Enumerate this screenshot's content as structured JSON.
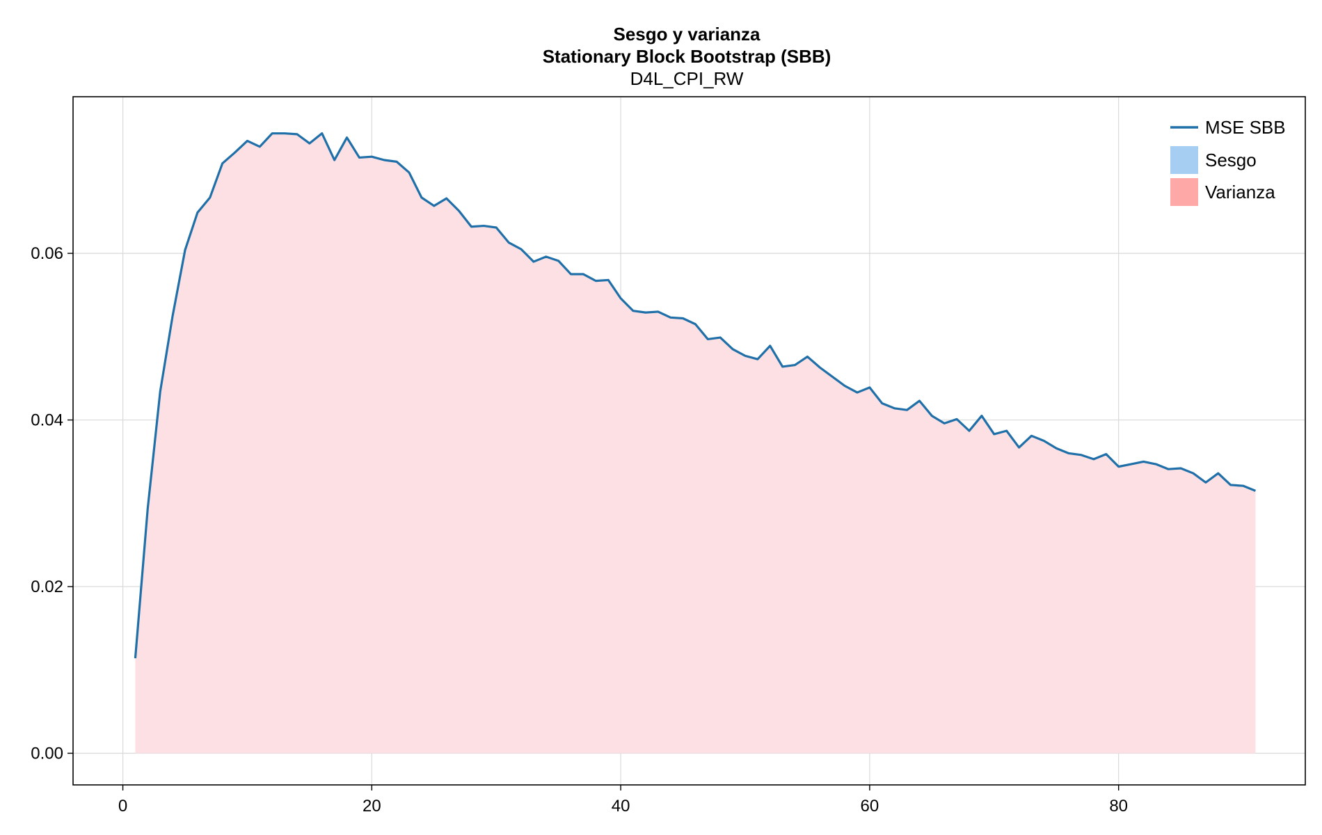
{
  "chart_data": {
    "type": "line",
    "title": "Sesgo y varianza",
    "subtitle": "Stationary Block Bootstrap (SBB)",
    "subtitle2": "D4L_CPI_RW",
    "xlabel": "",
    "ylabel": "",
    "xlim": [
      -4,
      95
    ],
    "ylim": [
      -0.0038,
      0.0788
    ],
    "xticks": [
      0,
      20,
      40,
      60,
      80
    ],
    "xtick_labels": [
      "0",
      "20",
      "40",
      "60",
      "80"
    ],
    "yticks": [
      0.0,
      0.02,
      0.04,
      0.06
    ],
    "ytick_labels": [
      "0.00",
      "0.02",
      "0.04",
      "0.06"
    ],
    "grid": true,
    "legend_position": "top-right",
    "x": [
      1,
      2,
      3,
      4,
      5,
      6,
      7,
      8,
      9,
      10,
      11,
      12,
      13,
      14,
      15,
      16,
      17,
      18,
      19,
      20,
      21,
      22,
      23,
      24,
      25,
      26,
      27,
      28,
      29,
      30,
      31,
      32,
      33,
      34,
      35,
      36,
      37,
      38,
      39,
      40,
      41,
      42,
      43,
      44,
      45,
      46,
      47,
      48,
      49,
      50,
      51,
      52,
      53,
      54,
      55,
      56,
      57,
      58,
      59,
      60,
      61,
      62,
      63,
      64,
      65,
      66,
      67,
      68,
      69,
      70,
      71,
      72,
      73,
      74,
      75,
      76,
      77,
      78,
      79,
      80,
      81,
      82,
      83,
      84,
      85,
      86,
      87,
      88,
      89,
      90,
      91
    ],
    "series": [
      {
        "name": "MSE SBB",
        "kind": "line",
        "color": "#1f6fa8",
        "values": [
          0.0114,
          0.0294,
          0.0434,
          0.0525,
          0.0604,
          0.0649,
          0.0667,
          0.0708,
          0.0721,
          0.0735,
          0.0728,
          0.0744,
          0.0744,
          0.0743,
          0.0732,
          0.0744,
          0.0712,
          0.0739,
          0.0715,
          0.0716,
          0.0712,
          0.071,
          0.0697,
          0.0667,
          0.0657,
          0.0666,
          0.0651,
          0.0632,
          0.0633,
          0.0631,
          0.0613,
          0.0605,
          0.059,
          0.0596,
          0.0591,
          0.0575,
          0.0575,
          0.0567,
          0.0568,
          0.0546,
          0.0531,
          0.0529,
          0.053,
          0.0523,
          0.0522,
          0.0515,
          0.0497,
          0.0499,
          0.0485,
          0.0477,
          0.0473,
          0.0489,
          0.0464,
          0.0466,
          0.0476,
          0.0463,
          0.0452,
          0.0441,
          0.0433,
          0.0439,
          0.042,
          0.0414,
          0.0412,
          0.0423,
          0.0405,
          0.0396,
          0.0401,
          0.0387,
          0.0405,
          0.0383,
          0.0387,
          0.0367,
          0.0381,
          0.0375,
          0.0366,
          0.036,
          0.0358,
          0.0353,
          0.0359,
          0.0344,
          0.0347,
          0.035,
          0.0347,
          0.0341,
          0.0342,
          0.0336,
          0.0325,
          0.0336,
          0.0322,
          0.0321,
          0.0315
        ]
      },
      {
        "name": "Sesgo",
        "kind": "area",
        "color": "#a6cef2",
        "values": [
          0,
          0,
          0,
          0,
          0,
          0,
          0,
          0,
          0,
          0,
          0,
          0,
          0,
          0,
          0,
          0,
          0,
          0,
          0,
          0,
          0,
          0,
          0,
          0,
          0,
          0,
          0,
          0,
          0,
          0,
          0,
          0,
          0,
          0,
          0,
          0,
          0,
          0,
          0,
          0,
          0,
          0,
          0,
          0,
          0,
          0,
          0,
          0,
          0,
          0,
          0,
          0,
          0,
          0,
          0,
          0,
          0,
          0,
          0,
          0,
          0,
          0,
          0,
          0,
          0,
          0,
          0,
          0,
          0,
          0,
          0,
          0,
          0,
          0,
          0,
          0,
          0,
          0,
          0,
          0,
          0,
          0,
          0,
          0,
          0,
          0,
          0,
          0,
          0,
          0,
          0
        ]
      },
      {
        "name": "Varianza",
        "kind": "area",
        "color": "#ffa8a8",
        "fill_color": "#fde0e3"
      }
    ]
  }
}
